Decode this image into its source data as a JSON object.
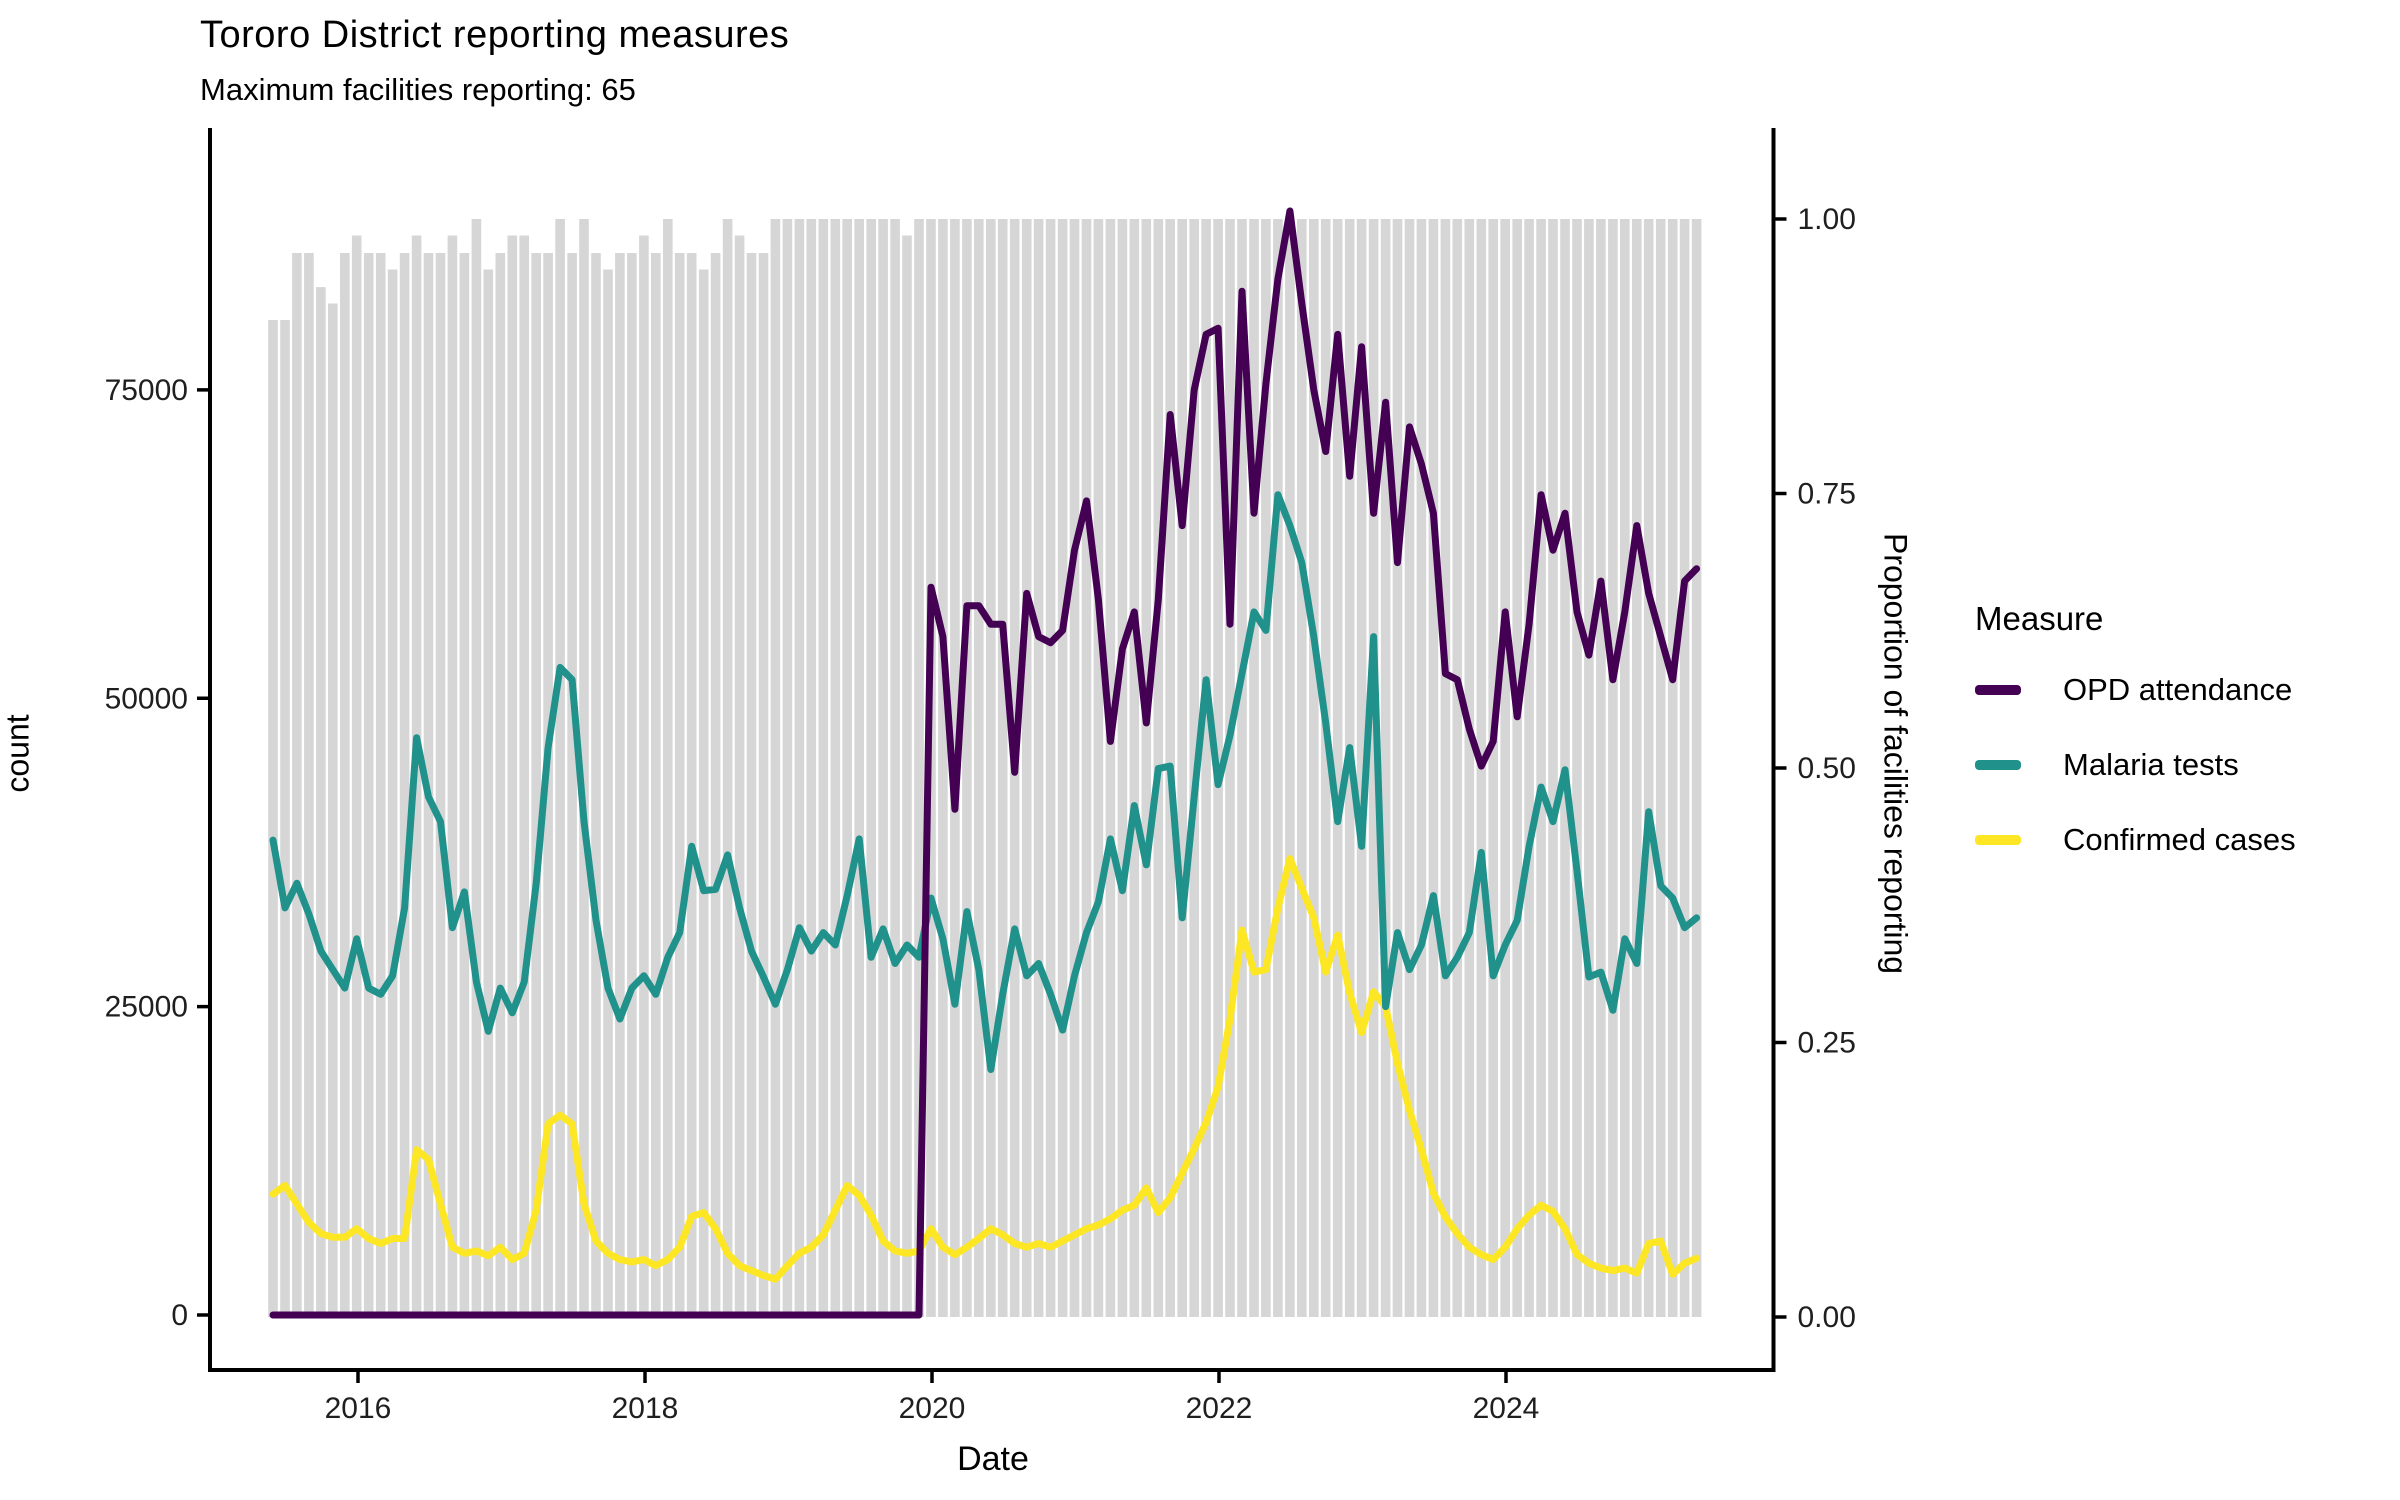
{
  "chart": {
    "title": "Tororo District reporting measures",
    "subtitle": "Maximum facilities reporting: 65",
    "x_label": "Date",
    "y_left_label": "count",
    "y_right_label": "Proportion of facilities reporting",
    "legend_title": "Measure"
  },
  "chart_data": {
    "type": "line+bar",
    "title": "Tororo District reporting measures",
    "subtitle": "Maximum facilities reporting: 65",
    "xlabel": "Date",
    "ylabel_left": "count",
    "ylabel_right": "Proportion of facilities reporting",
    "x_ticks": [
      2016,
      2018,
      2020,
      2022,
      2024
    ],
    "y_left_ticks": [
      0,
      25000,
      50000,
      75000
    ],
    "y_right_ticks": [
      {
        "v": 0.0,
        "label": "0.00"
      },
      {
        "v": 0.25,
        "label": "0.25"
      },
      {
        "v": 0.5,
        "label": "0.50"
      },
      {
        "v": 0.75,
        "label": "0.75"
      },
      {
        "v": 1.0,
        "label": "1.00"
      }
    ],
    "ylim_left": [
      0,
      96500
    ],
    "ylim_right": [
      0,
      1.0
    ],
    "start_month": "2015-06",
    "n_months": 120,
    "max_facilities": 65,
    "bar_series": {
      "name": "Proportion of facilities reporting",
      "color": "#d6d6d6",
      "values": [
        0.908,
        0.908,
        0.969,
        0.969,
        0.938,
        0.923,
        0.969,
        0.985,
        0.969,
        0.969,
        0.954,
        0.969,
        0.985,
        0.969,
        0.969,
        0.985,
        0.969,
        1.0,
        0.954,
        0.969,
        0.985,
        0.985,
        0.969,
        0.969,
        1.0,
        0.969,
        1.0,
        0.969,
        0.954,
        0.969,
        0.969,
        0.985,
        0.969,
        1.0,
        0.969,
        0.969,
        0.954,
        0.969,
        1.0,
        0.985,
        0.969,
        0.969,
        1.0,
        1.0,
        1.0,
        1.0,
        1.0,
        1.0,
        1.0,
        1.0,
        1.0,
        1.0,
        1.0,
        0.985,
        1.0,
        1.0,
        1.0,
        1.0,
        1.0,
        1.0,
        1.0,
        1.0,
        1.0,
        1.0,
        1.0,
        1.0,
        1.0,
        1.0,
        1.0,
        1.0,
        1.0,
        1.0,
        1.0,
        1.0,
        1.0,
        1.0,
        1.0,
        1.0,
        1.0,
        1.0,
        1.0,
        1.0,
        1.0,
        1.0,
        1.0,
        1.0,
        1.0,
        1.0,
        1.0,
        1.0,
        1.0,
        1.0,
        1.0,
        1.0,
        1.0,
        1.0,
        1.0,
        1.0,
        1.0,
        1.0,
        1.0,
        1.0,
        1.0,
        1.0,
        1.0,
        1.0,
        1.0,
        1.0,
        1.0,
        1.0,
        1.0,
        1.0,
        1.0,
        1.0,
        1.0,
        1.0,
        1.0,
        1.0,
        1.0,
        1.0
      ]
    },
    "series": [
      {
        "name": "OPD attendance",
        "color": "#440154",
        "values": [
          0,
          0,
          0,
          0,
          0,
          0,
          0,
          0,
          0,
          0,
          0,
          0,
          0,
          0,
          0,
          0,
          0,
          0,
          0,
          0,
          0,
          0,
          0,
          0,
          0,
          0,
          0,
          0,
          0,
          0,
          0,
          0,
          0,
          0,
          0,
          0,
          0,
          0,
          0,
          0,
          0,
          0,
          0,
          0,
          0,
          0,
          0,
          0,
          0,
          0,
          0,
          0,
          0,
          0,
          0,
          59000,
          55000,
          41000,
          57500,
          57500,
          56000,
          56000,
          44000,
          58500,
          55000,
          54500,
          55500,
          62000,
          66000,
          58000,
          46500,
          54000,
          57000,
          48000,
          58000,
          73000,
          64000,
          75000,
          79500,
          80000,
          56000,
          83000,
          65000,
          75500,
          84000,
          89500,
          82000,
          75000,
          70000,
          79500,
          68000,
          78500,
          65000,
          74000,
          61000,
          72000,
          69000,
          65000,
          52000,
          51500,
          47500,
          44500,
          46500,
          57000,
          48500,
          56000,
          66500,
          62000,
          65000,
          57000,
          53500,
          59500,
          51500,
          57000,
          64000,
          58500,
          55000,
          51500,
          59500,
          60500
        ]
      },
      {
        "name": "Malaria tests",
        "color": "#21918c",
        "values": [
          38500,
          33000,
          35000,
          32500,
          29500,
          28000,
          26500,
          30500,
          26500,
          26000,
          27500,
          33000,
          46800,
          42000,
          40000,
          31400,
          34300,
          27000,
          23000,
          26500,
          24500,
          27000,
          35000,
          46000,
          52500,
          51500,
          40000,
          32000,
          26500,
          24000,
          26500,
          27500,
          26000,
          29000,
          31000,
          38000,
          34400,
          34500,
          37300,
          33000,
          29500,
          27400,
          25200,
          28000,
          31400,
          29500,
          31000,
          30000,
          34000,
          38600,
          29000,
          31300,
          28500,
          30000,
          29000,
          33800,
          30500,
          25200,
          32700,
          28000,
          19900,
          26000,
          31300,
          27500,
          28500,
          26000,
          23100,
          27500,
          31000,
          33500,
          38600,
          34400,
          41300,
          36500,
          44300,
          44500,
          32200,
          42000,
          51500,
          43000,
          47000,
          52000,
          57000,
          55500,
          66500,
          64000,
          61000,
          55000,
          48000,
          40000,
          46000,
          38000,
          55000,
          25000,
          31000,
          28000,
          30000,
          34000,
          27500,
          29000,
          31000,
          37500,
          27500,
          30000,
          32000,
          38000,
          42800,
          40000,
          44200,
          36000,
          27400,
          27800,
          24700,
          30500,
          28500,
          40800,
          34800,
          33800,
          31400,
          32200
        ]
      },
      {
        "name": "Confirmed cases",
        "color": "#fde725",
        "values": [
          9800,
          10500,
          9000,
          7500,
          6600,
          6300,
          6300,
          7000,
          6200,
          5800,
          6200,
          6200,
          13400,
          12600,
          9000,
          5500,
          5000,
          5200,
          4800,
          5500,
          4500,
          5000,
          8500,
          15500,
          16200,
          15500,
          9000,
          6000,
          5000,
          4500,
          4300,
          4500,
          4000,
          4500,
          5500,
          8000,
          8300,
          7000,
          5000,
          4000,
          3600,
          3200,
          2900,
          4000,
          5000,
          5500,
          6500,
          8500,
          10500,
          9700,
          8100,
          6000,
          5200,
          5000,
          5200,
          7000,
          5500,
          4900,
          5500,
          6200,
          7000,
          6500,
          5800,
          5500,
          5800,
          5500,
          6000,
          6500,
          7000,
          7300,
          7800,
          8500,
          8900,
          10300,
          8300,
          9500,
          11500,
          13500,
          15600,
          18500,
          24000,
          31200,
          27800,
          28000,
          33000,
          37000,
          34600,
          32200,
          27800,
          30800,
          26100,
          22900,
          26200,
          25000,
          20400,
          16600,
          13400,
          9900,
          7950,
          6600,
          5500,
          4900,
          4500,
          5500,
          7000,
          8100,
          8900,
          8400,
          7000,
          4900,
          4200,
          3800,
          3600,
          3800,
          3400,
          5800,
          6000,
          3300,
          4200,
          4600
        ]
      }
    ],
    "legend_title": "Measure",
    "legend_position": "right",
    "grid": false
  }
}
